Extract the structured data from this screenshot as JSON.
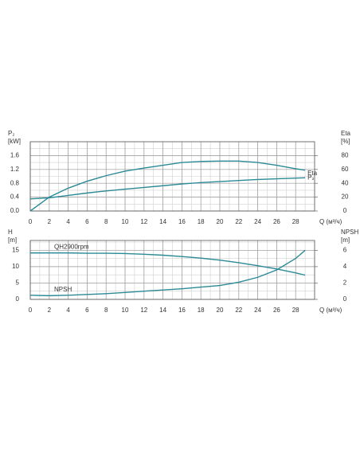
{
  "chart_data": [
    {
      "type": "line",
      "ylabel": "P₂",
      "yunit": "[kW]",
      "y2label": "Eta",
      "y2unit": "[%]",
      "xlabel": "Q (м³/ч)",
      "x": [
        0,
        2,
        4,
        6,
        8,
        10,
        12,
        14,
        16,
        18,
        20,
        22,
        24,
        26,
        28,
        29
      ],
      "series": [
        {
          "name": "Eta",
          "color": "#2a8a96",
          "axis": "y2",
          "values": [
            0,
            20,
            33,
            43,
            51,
            57.5,
            62,
            66,
            70,
            71.5,
            72,
            72,
            70,
            66,
            61,
            59
          ]
        },
        {
          "name": "P₂",
          "color": "#2a8a96",
          "values": [
            0.35,
            0.38,
            0.45,
            0.52,
            0.58,
            0.63,
            0.68,
            0.73,
            0.78,
            0.82,
            0.85,
            0.88,
            0.91,
            0.93,
            0.95,
            0.96
          ]
        }
      ],
      "xlim": [
        0,
        30
      ],
      "xticks": [
        0,
        2,
        4,
        6,
        8,
        10,
        12,
        14,
        16,
        18,
        20,
        22,
        24,
        26,
        28
      ],
      "ylim": [
        0,
        2
      ],
      "yticks": [
        {
          "value": 0,
          "label": "0.0"
        },
        0.4,
        0.8,
        1.2,
        1.6
      ],
      "y2lim": [
        0,
        100
      ],
      "y2ticks": [
        0,
        20,
        40,
        60,
        80
      ],
      "grid": true,
      "minor_grid": {
        "x": 1,
        "y": 0.2
      }
    },
    {
      "type": "line",
      "ylabel": "H",
      "yunit": "[m]",
      "y2label": "NPSH",
      "y2unit": "[m]",
      "xlabel": "Q (м³/ч)",
      "x": [
        0,
        2,
        4,
        6,
        8,
        10,
        12,
        14,
        16,
        18,
        20,
        22,
        24,
        26,
        28,
        29
      ],
      "series": [
        {
          "name": "QH2900rpm",
          "color": "#2a8a96",
          "values": [
            14.2,
            14.2,
            14.2,
            14.1,
            14.1,
            14.0,
            13.8,
            13.5,
            13.1,
            12.6,
            12.0,
            11.2,
            10.3,
            9.3,
            8.1,
            7.4
          ]
        },
        {
          "name": "NPSH",
          "color": "#2a8a96",
          "axis": "y2",
          "values": [
            0.5,
            0.45,
            0.5,
            0.6,
            0.7,
            0.85,
            1.0,
            1.15,
            1.3,
            1.5,
            1.7,
            2.1,
            2.7,
            3.6,
            5.0,
            6.0
          ]
        }
      ],
      "xlim": [
        0,
        30
      ],
      "xticks": [
        0,
        2,
        4,
        6,
        8,
        10,
        12,
        14,
        16,
        18,
        20,
        22,
        24,
        26,
        28
      ],
      "ylim": [
        0,
        18
      ],
      "yticks": [
        0,
        5,
        10,
        15
      ],
      "y2lim": [
        0,
        7.2
      ],
      "y2ticks": [
        0,
        2,
        4,
        6
      ],
      "grid": true,
      "minor_grid": {
        "x": 1,
        "y": 2.5
      }
    }
  ]
}
